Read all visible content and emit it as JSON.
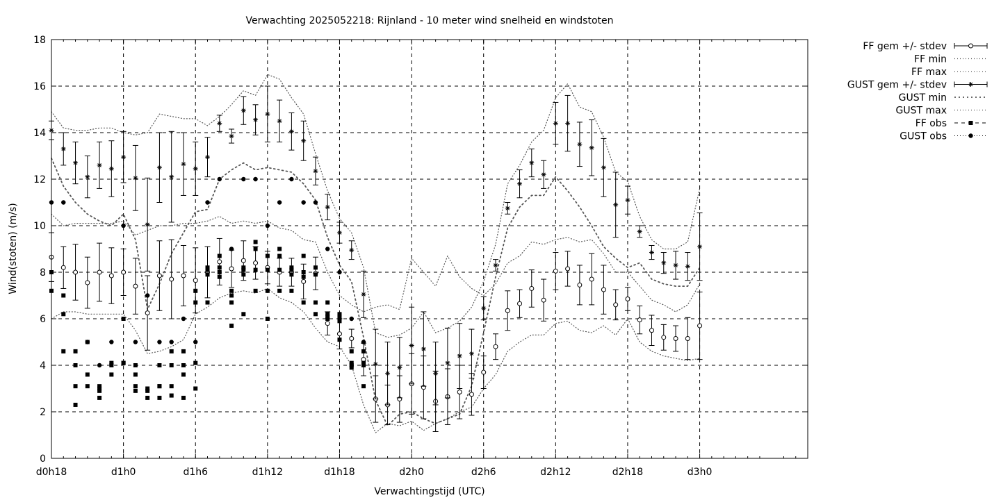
{
  "chart_data": {
    "type": "line",
    "title": "Verwachting 2025052218: Rijnland - 10 meter wind snelheid en windstoten",
    "xlabel": "Verwachtingstijd (UTC)",
    "ylabel": "Wind(stoten) (m/s)",
    "xlim": [
      18,
      81
    ],
    "ylim": [
      0,
      18
    ],
    "x_ticks": [
      {
        "x": 18,
        "label": "d0h18"
      },
      {
        "x": 24,
        "label": "d1h0"
      },
      {
        "x": 30,
        "label": "d1h6"
      },
      {
        "x": 36,
        "label": "d1h12"
      },
      {
        "x": 42,
        "label": "d1h18"
      },
      {
        "x": 48,
        "label": "d2h0"
      },
      {
        "x": 54,
        "label": "d2h6"
      },
      {
        "x": 60,
        "label": "d2h12"
      },
      {
        "x": 66,
        "label": "d2h18"
      },
      {
        "x": 72,
        "label": "d3h0"
      }
    ],
    "y_ticks": [
      0,
      2,
      4,
      6,
      8,
      10,
      12,
      14,
      16,
      18
    ],
    "grid": true,
    "legend_position": "outside-right-top",
    "legend": [
      "FF gem +/- stdev",
      "FF min",
      "FF max",
      "GUST gem +/- stdev",
      "GUST min",
      "GUST max",
      "FF obs",
      "GUST obs"
    ],
    "series": [
      {
        "name": "FF gem +/- stdev",
        "x": [
          18,
          19,
          20,
          21,
          22,
          23,
          24,
          25,
          26,
          27,
          28,
          29,
          30,
          31,
          32,
          33,
          34,
          35,
          36,
          37,
          38,
          39,
          40,
          41,
          42,
          43,
          44,
          45,
          46,
          47,
          48,
          49,
          50,
          51,
          52,
          53,
          54,
          55,
          56,
          57,
          58,
          59,
          60,
          61,
          62,
          63,
          64,
          65,
          66,
          67,
          68,
          69,
          70,
          71,
          72
        ],
        "mean": [
          8.65,
          8.2,
          8.0,
          7.55,
          8.0,
          7.85,
          8.0,
          7.4,
          6.25,
          7.85,
          7.7,
          7.85,
          7.65,
          8.0,
          8.45,
          8.15,
          8.5,
          8.4,
          8.2,
          8.0,
          8.0,
          7.6,
          7.95,
          5.8,
          5.35,
          5.15,
          4.25,
          2.55,
          2.3,
          2.55,
          3.2,
          3.05,
          2.45,
          2.65,
          2.85,
          2.75,
          3.7,
          4.8,
          6.35,
          6.65,
          7.3,
          6.8,
          8.05,
          8.15,
          7.45,
          7.7,
          7.25,
          6.6,
          6.85,
          5.95,
          5.5,
          5.2,
          5.15,
          5.15,
          5.7
        ],
        "stdev": [
          1.05,
          0.9,
          1.2,
          1.1,
          1.25,
          1.2,
          1.0,
          1.2,
          1.6,
          1.5,
          1.7,
          1.3,
          1.4,
          1.1,
          1.0,
          0.8,
          0.85,
          0.7,
          0.7,
          0.6,
          0.6,
          0.75,
          0.7,
          0.5,
          0.65,
          0.4,
          0.7,
          1.0,
          0.85,
          1.0,
          1.3,
          1.35,
          1.3,
          1.2,
          1.15,
          0.9,
          0.7,
          0.55,
          0.85,
          0.6,
          0.8,
          0.9,
          0.8,
          0.75,
          0.85,
          1.1,
          1.05,
          0.65,
          0.5,
          0.6,
          0.65,
          0.55,
          0.55,
          0.9,
          1.45
        ]
      },
      {
        "name": "FF min",
        "x": [
          18,
          19,
          20,
          21,
          22,
          23,
          24,
          25,
          26,
          27,
          28,
          29,
          30,
          31,
          32,
          33,
          34,
          35,
          36,
          37,
          38,
          39,
          40,
          41,
          42,
          43,
          44,
          45,
          46,
          47,
          48,
          49,
          50,
          51,
          52,
          53,
          54,
          55,
          56,
          57,
          58,
          59,
          60,
          61,
          62,
          63,
          64,
          65,
          66,
          67,
          68,
          69,
          70,
          71,
          72
        ],
        "values": [
          6.0,
          6.3,
          6.3,
          6.2,
          6.2,
          6.2,
          6.2,
          5.5,
          4.5,
          4.6,
          4.8,
          5.1,
          6.2,
          6.5,
          6.9,
          7.1,
          7.2,
          7.1,
          7.3,
          6.9,
          6.7,
          6.3,
          5.6,
          5.0,
          4.8,
          4.0,
          2.3,
          1.1,
          1.5,
          1.4,
          1.6,
          1.2,
          1.5,
          1.7,
          2.0,
          2.2,
          3.0,
          3.6,
          4.6,
          5.0,
          5.3,
          5.3,
          5.8,
          5.9,
          5.5,
          5.4,
          5.7,
          5.3,
          6.0,
          5.0,
          4.6,
          4.4,
          4.3,
          4.2,
          4.3
        ]
      },
      {
        "name": "FF max",
        "x": [
          18,
          19,
          20,
          21,
          22,
          23,
          24,
          25,
          26,
          27,
          28,
          29,
          30,
          31,
          32,
          33,
          34,
          35,
          36,
          37,
          38,
          39,
          40,
          41,
          42,
          43,
          44,
          45,
          46,
          47,
          48,
          49,
          50,
          51,
          52,
          53,
          54,
          55,
          56,
          57,
          58,
          59,
          60,
          61,
          62,
          63,
          64,
          65,
          66,
          67,
          68,
          69,
          70,
          71,
          72
        ],
        "values": [
          10.5,
          10.0,
          10.1,
          10.1,
          10.1,
          10.1,
          10.2,
          9.6,
          9.8,
          10.0,
          10.0,
          10.1,
          10.1,
          10.2,
          10.4,
          10.1,
          10.2,
          10.1,
          10.2,
          9.9,
          9.8,
          9.4,
          9.3,
          8.0,
          7.0,
          6.6,
          6.3,
          6.5,
          6.6,
          6.4,
          8.6,
          8.0,
          7.4,
          8.7,
          7.8,
          7.3,
          7.0,
          7.5,
          8.4,
          8.7,
          9.3,
          9.2,
          9.4,
          9.5,
          9.3,
          9.4,
          8.8,
          8.0,
          8.0,
          7.4,
          6.8,
          6.6,
          6.3,
          6.6,
          7.5
        ]
      },
      {
        "name": "GUST gem +/- stdev",
        "x": [
          18,
          19,
          20,
          21,
          22,
          23,
          24,
          25,
          26,
          27,
          28,
          29,
          30,
          31,
          32,
          33,
          34,
          35,
          36,
          37,
          38,
          39,
          40,
          41,
          42,
          43,
          44,
          45,
          46,
          47,
          48,
          49,
          50,
          51,
          52,
          53,
          54,
          55,
          56,
          57,
          58,
          59,
          60,
          61,
          62,
          63,
          64,
          65,
          66,
          67,
          68,
          69,
          70,
          71,
          72
        ],
        "mean": [
          14.1,
          13.3,
          12.7,
          12.1,
          12.6,
          12.45,
          12.95,
          12.05,
          10.05,
          12.5,
          12.1,
          12.65,
          12.45,
          12.95,
          14.4,
          13.85,
          14.95,
          14.55,
          14.8,
          14.5,
          14.05,
          13.65,
          12.35,
          10.8,
          9.7,
          8.95,
          7.05,
          4.05,
          3.65,
          3.9,
          4.85,
          4.7,
          3.65,
          4.1,
          4.4,
          4.5,
          6.45,
          8.3,
          10.75,
          11.8,
          12.7,
          12.2,
          14.4,
          14.4,
          13.5,
          13.35,
          12.5,
          10.9,
          11.1,
          9.75,
          8.85,
          8.4,
          8.3,
          8.25,
          9.1
        ],
        "stdev": [
          0.4,
          0.7,
          0.9,
          0.9,
          1.0,
          1.2,
          1.1,
          1.4,
          2.0,
          1.5,
          1.95,
          1.35,
          1.15,
          0.85,
          0.35,
          0.3,
          0.6,
          0.65,
          1.2,
          0.9,
          0.8,
          0.85,
          0.6,
          0.55,
          0.45,
          0.4,
          1.0,
          1.5,
          1.35,
          1.3,
          1.65,
          1.6,
          1.35,
          1.5,
          1.4,
          1.05,
          0.5,
          0.25,
          0.25,
          0.6,
          0.6,
          0.6,
          0.9,
          1.2,
          0.95,
          1.2,
          1.25,
          1.4,
          0.6,
          0.25,
          0.3,
          0.45,
          0.6,
          0.6,
          1.45
        ]
      },
      {
        "name": "GUST min",
        "x": [
          18,
          19,
          20,
          21,
          22,
          23,
          24,
          25,
          26,
          27,
          28,
          29,
          30,
          31,
          32,
          33,
          34,
          35,
          36,
          37,
          38,
          39,
          40,
          41,
          42,
          43,
          44,
          45,
          46,
          47,
          48,
          49,
          50,
          51,
          52,
          53,
          54,
          55,
          56,
          57,
          58,
          59,
          60,
          61,
          62,
          63,
          64,
          65,
          66,
          67,
          68,
          69,
          70,
          71,
          72
        ],
        "values": [
          12.9,
          11.7,
          11.0,
          10.5,
          10.2,
          10.0,
          10.5,
          9.4,
          6.4,
          7.5,
          8.8,
          9.7,
          10.6,
          10.7,
          12.0,
          12.4,
          12.7,
          12.4,
          12.5,
          12.4,
          12.3,
          11.8,
          11.1,
          9.5,
          8.3,
          7.6,
          5.2,
          2.5,
          1.4,
          1.9,
          2.0,
          1.7,
          1.5,
          1.7,
          1.9,
          3.1,
          5.4,
          7.8,
          9.9,
          10.8,
          11.3,
          11.3,
          12.1,
          11.5,
          10.8,
          10.0,
          9.1,
          8.6,
          8.2,
          8.4,
          7.7,
          7.5,
          7.4,
          7.4,
          8.2
        ]
      },
      {
        "name": "GUST max",
        "x": [
          18,
          19,
          20,
          21,
          22,
          23,
          24,
          25,
          26,
          27,
          28,
          29,
          30,
          31,
          32,
          33,
          34,
          35,
          36,
          37,
          38,
          39,
          40,
          41,
          42,
          43,
          44,
          45,
          46,
          47,
          48,
          49,
          50,
          51,
          52,
          53,
          54,
          55,
          56,
          57,
          58,
          59,
          60,
          61,
          62,
          63,
          64,
          65,
          66,
          67,
          68,
          69,
          70,
          71,
          72
        ],
        "values": [
          14.9,
          14.2,
          14.1,
          14.1,
          14.2,
          14.2,
          14.0,
          13.9,
          14.0,
          14.8,
          14.7,
          14.6,
          14.6,
          14.3,
          14.7,
          15.2,
          15.8,
          15.6,
          16.5,
          16.3,
          15.5,
          14.8,
          13.1,
          11.5,
          10.3,
          9.7,
          8.2,
          5.4,
          5.2,
          5.3,
          5.6,
          6.3,
          5.4,
          5.6,
          5.9,
          6.5,
          7.6,
          9.2,
          11.8,
          12.6,
          13.6,
          14.1,
          15.5,
          16.1,
          15.1,
          14.9,
          13.8,
          12.3,
          11.9,
          10.4,
          9.4,
          9.0,
          9.0,
          9.3,
          11.6
        ]
      },
      {
        "name": "FF obs",
        "x": [
          18,
          18,
          19,
          19,
          19,
          20,
          20,
          20,
          20,
          21,
          21,
          21,
          22,
          22,
          22,
          22,
          23,
          23,
          23,
          24,
          24,
          24,
          25,
          25,
          25,
          25,
          26,
          26,
          26,
          27,
          27,
          27,
          27,
          28,
          28,
          28,
          28,
          29,
          29,
          29,
          29,
          30,
          30,
          30,
          30,
          31,
          31,
          31,
          31,
          32,
          32,
          32,
          32,
          33,
          33,
          33,
          33,
          34,
          34,
          34,
          34,
          35,
          35,
          35,
          35,
          36,
          36,
          36,
          36,
          37,
          37,
          37,
          37,
          38,
          38,
          38,
          38,
          39,
          39,
          39,
          39,
          40,
          40,
          40,
          40,
          41,
          41,
          41,
          41,
          42,
          42,
          42,
          42,
          43,
          43,
          43,
          43,
          44,
          44,
          44,
          44
        ],
        "values": [
          8.0,
          7.2,
          7.0,
          6.2,
          4.6,
          4.6,
          4.0,
          3.1,
          2.3,
          5.0,
          3.6,
          3.1,
          3.1,
          3.0,
          2.9,
          2.6,
          4.1,
          4.0,
          3.6,
          6.0,
          4.1,
          4.1,
          4.0,
          3.6,
          3.1,
          2.9,
          3.0,
          2.9,
          2.6,
          4.0,
          3.1,
          3.1,
          2.6,
          4.6,
          4.0,
          3.1,
          2.7,
          4.6,
          4.0,
          3.6,
          2.6,
          7.2,
          6.7,
          4.1,
          3.0,
          8.2,
          8.1,
          7.9,
          6.7,
          8.7,
          8.2,
          8.0,
          7.8,
          7.2,
          7.0,
          6.7,
          5.7,
          8.2,
          8.1,
          7.9,
          6.2,
          9.3,
          9.0,
          8.1,
          7.2,
          8.7,
          8.1,
          7.2,
          6.0,
          9.0,
          8.7,
          8.1,
          7.2,
          8.2,
          8.1,
          7.9,
          7.2,
          8.7,
          8.0,
          7.8,
          6.7,
          8.2,
          7.9,
          6.7,
          6.2,
          6.7,
          6.2,
          6.1,
          6.0,
          6.2,
          6.1,
          5.9,
          5.1,
          4.6,
          4.1,
          4.0,
          3.9,
          4.6,
          4.1,
          4.0,
          3.1
        ]
      },
      {
        "name": "GUST obs",
        "x": [
          18,
          19,
          21,
          22,
          23,
          24,
          25,
          26,
          27,
          28,
          29,
          30,
          31,
          32,
          33,
          34,
          35,
          36,
          37,
          38,
          39,
          40,
          41,
          42,
          43,
          44
        ],
        "values": [
          11.0,
          11.0,
          5.0,
          4.0,
          5.0,
          10.0,
          5.0,
          7.0,
          5.0,
          5.0,
          6.0,
          5.0,
          11.0,
          12.0,
          9.0,
          12.0,
          12.0,
          10.0,
          11.0,
          12.0,
          11.0,
          11.0,
          9.0,
          8.0,
          6.0,
          5.0
        ]
      }
    ]
  }
}
